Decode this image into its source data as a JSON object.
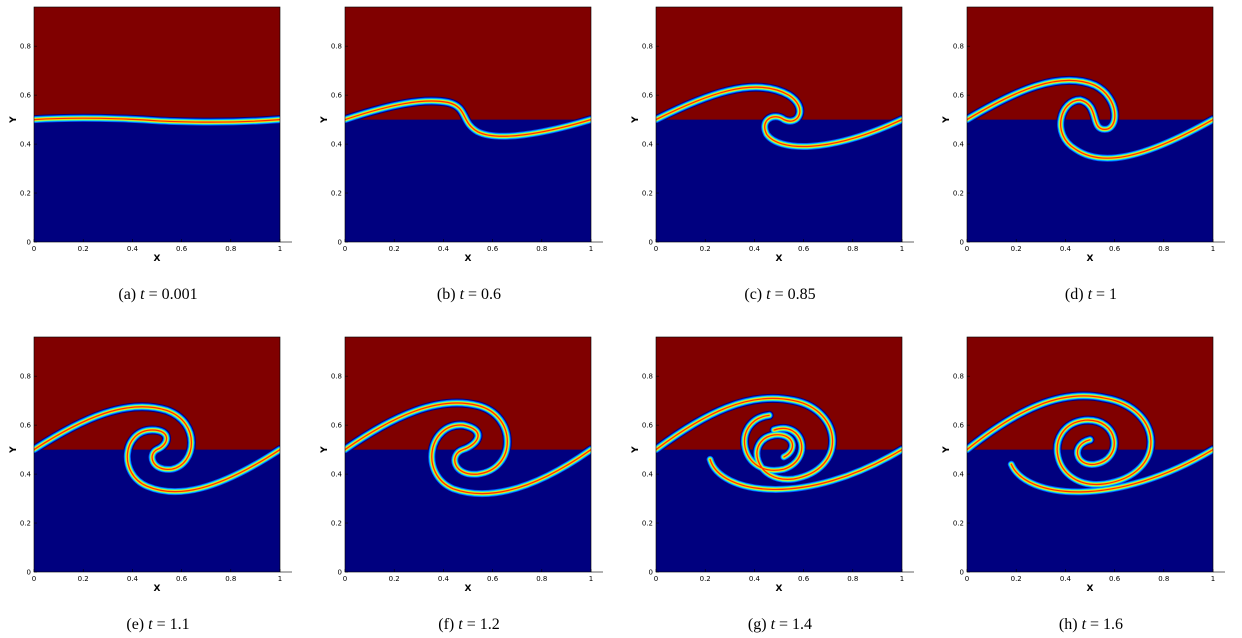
{
  "colors": {
    "top_fluid": "#800000",
    "bottom_fluid": "#00007f",
    "interface_outer": "#ffd400",
    "interface_inner": "#00c8ff"
  },
  "axes": {
    "xlabel": "X",
    "ylabel": "Y",
    "x_ticks": [
      "0",
      "0.2",
      "0.4",
      "0.6",
      "0.8",
      "1"
    ],
    "y_ticks": [
      "0",
      "0.2",
      "0.4",
      "0.6",
      "0.8"
    ]
  },
  "panels": [
    {
      "letter": "(a)",
      "tvar": "t",
      "eq": "= 0.001",
      "stage": 0
    },
    {
      "letter": "(b)",
      "tvar": "t",
      "eq": "= 0.6",
      "stage": 1
    },
    {
      "letter": "(c)",
      "tvar": "t",
      "eq": "= 0.85",
      "stage": 2
    },
    {
      "letter": "(d)",
      "tvar": "t",
      "eq": "= 1",
      "stage": 3
    },
    {
      "letter": "(e)",
      "tvar": "t",
      "eq": "= 1.1",
      "stage": 4
    },
    {
      "letter": "(f)",
      "tvar": "t",
      "eq": "= 1.2",
      "stage": 5
    },
    {
      "letter": "(g)",
      "tvar": "t",
      "eq": "= 1.4",
      "stage": 6
    },
    {
      "letter": "(h)",
      "tvar": "t",
      "eq": "= 1.6",
      "stage": 7
    }
  ]
}
